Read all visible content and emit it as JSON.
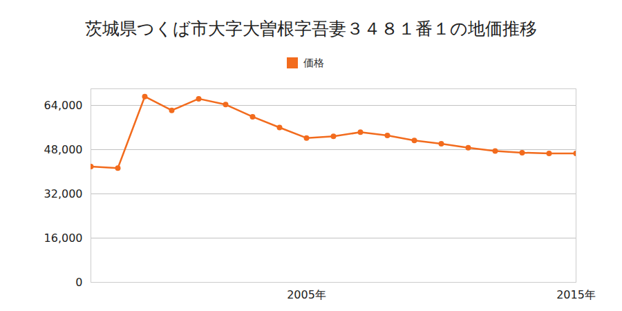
{
  "chart_data": {
    "type": "line",
    "title": "茨城県つくば市大字大曽根字吾妻３４８１番１の地価推移",
    "x": [
      1997,
      1998,
      1999,
      2000,
      2001,
      2002,
      2003,
      2004,
      2005,
      2006,
      2007,
      2008,
      2009,
      2010,
      2011,
      2012,
      2013,
      2014,
      2015
    ],
    "series": [
      {
        "name": "価格",
        "color": "#f26b1d",
        "marker": "circle",
        "values": [
          41900,
          41300,
          67200,
          62200,
          66400,
          64300,
          59900,
          56000,
          52200,
          52800,
          54300,
          53100,
          51300,
          50100,
          48700,
          47500,
          46900,
          46600,
          46600
        ]
      }
    ],
    "xlim": [
      1997,
      2015
    ],
    "xticks": [
      {
        "value": 2005,
        "label": "2005年"
      },
      {
        "value": 2015,
        "label": "2015年"
      }
    ],
    "ylim": [
      0,
      70000
    ],
    "yticks": [
      0,
      {
        "value": 16000,
        "label": "16,000"
      },
      {
        "value": 32000,
        "label": "32,000"
      },
      {
        "value": 48000,
        "label": "48,000"
      },
      {
        "value": 64000,
        "label": "64,000"
      }
    ],
    "grid": true,
    "legend": "top"
  }
}
